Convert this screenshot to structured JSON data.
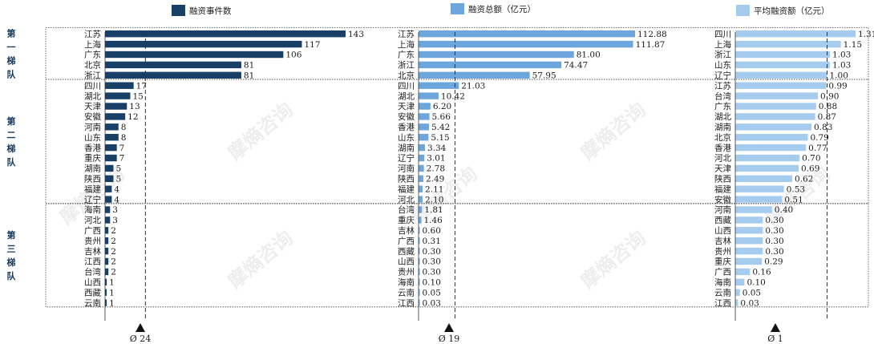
{
  "chart_data": {
    "type": "bar",
    "orientation": "horizontal",
    "watermark": "摩熵咨询",
    "colors": {
      "events": "#183f66",
      "total": "#6da6dc",
      "avg": "#a5ccef",
      "tier_label": "#14385f"
    },
    "tiers": [
      "第一梯队",
      "第二梯队",
      "第三梯队"
    ],
    "tier_sizes": [
      5,
      12,
      10
    ],
    "series": [
      {
        "name": "融资事件数",
        "avg_label": "Ø 24",
        "average": 24,
        "categories": [
          "江苏",
          "上海",
          "广东",
          "北京",
          "浙江",
          "四川",
          "湖北",
          "天津",
          "安徽",
          "河南",
          "山东",
          "香港",
          "重庆",
          "湖南",
          "陕西",
          "福建",
          "辽宁",
          "海南",
          "河北",
          "广西",
          "贵州",
          "吉林",
          "江西",
          "台湾",
          "山西",
          "西藏",
          "云南"
        ],
        "values": [
          143,
          117,
          106,
          81,
          81,
          17,
          15,
          13,
          12,
          8,
          8,
          7,
          7,
          5,
          5,
          4,
          4,
          3,
          3,
          2,
          2,
          2,
          2,
          2,
          1,
          1,
          1
        ],
        "labels": [
          "143",
          "117",
          "106",
          "81",
          "81",
          "17",
          "15",
          "13",
          "12",
          "8",
          "8",
          "7",
          "7",
          "5",
          "5",
          "4",
          "4",
          "3",
          "3",
          "2",
          "2",
          "2",
          "2",
          "2",
          "1",
          "1",
          "1"
        ]
      },
      {
        "name": "融资总额（亿元）",
        "avg_label": "Ø 19",
        "average": 19,
        "categories": [
          "江苏",
          "上海",
          "广东",
          "浙江",
          "北京",
          "四川",
          "湖北",
          "天津",
          "安徽",
          "香港",
          "山东",
          "湖南",
          "辽宁",
          "河南",
          "陕西",
          "福建",
          "河北",
          "台湾",
          "重庆",
          "吉林",
          "广西",
          "西藏",
          "山西",
          "贵州",
          "海南",
          "云南",
          "江西"
        ],
        "values": [
          112.88,
          111.87,
          81.0,
          74.47,
          57.95,
          21.03,
          10.42,
          6.2,
          5.66,
          5.42,
          5.15,
          3.34,
          3.01,
          2.78,
          2.49,
          2.11,
          2.1,
          1.81,
          1.46,
          0.6,
          0.31,
          0.3,
          0.3,
          0.3,
          0.1,
          0.05,
          0.03
        ],
        "labels": [
          "112.88",
          "111.87",
          "81.00",
          "74.47",
          "57.95",
          "21.03",
          "10.42",
          "6.20",
          "5.66",
          "5.42",
          "5.15",
          "3.34",
          "3.01",
          "2.78",
          "2.49",
          "2.11",
          "2.10",
          "1.81",
          "1.46",
          "0.60",
          "0.31",
          "0.30",
          "0.30",
          "0.30",
          "0.10",
          "0.05",
          "0.03"
        ]
      },
      {
        "name": "平均融资额（亿元）",
        "avg_label": "Ø 1",
        "average": 1,
        "categories": [
          "四川",
          "上海",
          "浙江",
          "山东",
          "辽宁",
          "江苏",
          "台湾",
          "广东",
          "湖北",
          "湖南",
          "北京",
          "香港",
          "河北",
          "天津",
          "陕西",
          "福建",
          "安徽",
          "河南",
          "西藏",
          "山西",
          "吉林",
          "贵州",
          "重庆",
          "广西",
          "海南",
          "云南",
          "江西"
        ],
        "values": [
          1.31,
          1.15,
          1.03,
          1.03,
          1.0,
          0.99,
          0.9,
          0.88,
          0.87,
          0.83,
          0.79,
          0.77,
          0.7,
          0.69,
          0.62,
          0.53,
          0.51,
          0.4,
          0.3,
          0.3,
          0.3,
          0.3,
          0.29,
          0.16,
          0.1,
          0.05,
          0.03
        ],
        "labels": [
          "1.31",
          "1.15",
          "1.03",
          "1.03",
          "1.00",
          "0.99",
          "0.90",
          "0.88",
          "0.87",
          "0.83",
          "0.79",
          "0.77",
          "0.70",
          "0.69",
          "0.62",
          "0.53",
          "0.51",
          "0.40",
          "0.30",
          "0.30",
          "0.30",
          "0.30",
          "0.29",
          "0.16",
          "0.10",
          "0.05",
          "0.03"
        ]
      }
    ]
  }
}
